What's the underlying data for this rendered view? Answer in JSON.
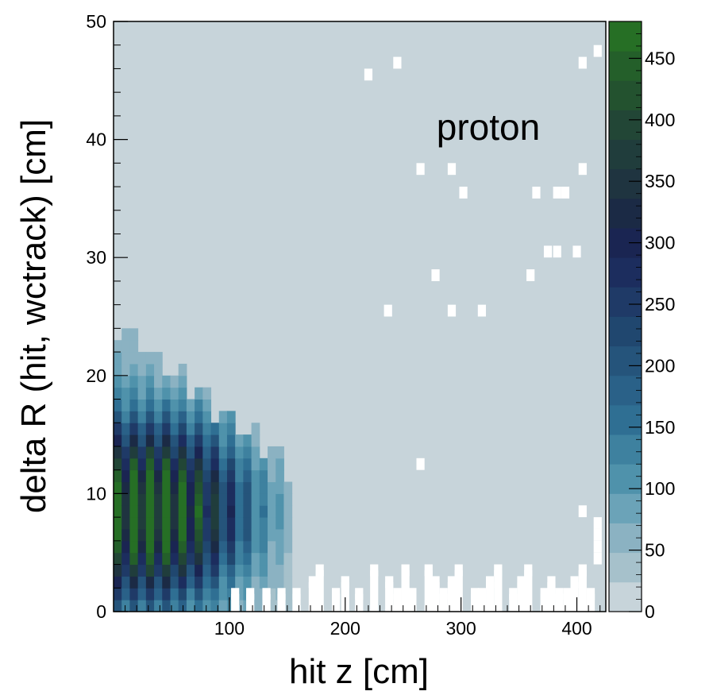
{
  "chart_data": {
    "type": "heatmap",
    "title": "",
    "annotation": "proton",
    "xlabel": "hit z [cm]",
    "ylabel": "delta R (hit, wctrack) [cm]",
    "xlim": [
      0,
      425
    ],
    "ylim": [
      0,
      50
    ],
    "x_ticks": [
      100,
      200,
      300,
      400
    ],
    "y_ticks": [
      0,
      10,
      20,
      30,
      40,
      50
    ],
    "bin_width_x": 7,
    "bin_width_y": 1,
    "colorbar": {
      "range": [
        0,
        480
      ],
      "ticks": [
        0,
        50,
        100,
        150,
        200,
        250,
        300,
        350,
        400,
        450
      ],
      "colors": [
        "#c7d4da",
        "#a6c1cb",
        "#8bb2c2",
        "#6ba3b8",
        "#4f92ab",
        "#3e819f",
        "#2f6f93",
        "#2a6188",
        "#25547b",
        "#20476f",
        "#1f3a67",
        "#1c2d5e",
        "#1a2552",
        "#1b2a45",
        "#1f3440",
        "#203d3c",
        "#224636",
        "#23522f",
        "#245f2a",
        "#266f25"
      ]
    },
    "background_level": 5,
    "cluster": {
      "z_center": 35,
      "r_center": 8.5,
      "z_extent": 150,
      "r_extent_max": 24,
      "peak_value": 480
    },
    "empty_bins": [
      [
        220,
        45.5
      ],
      [
        245,
        46.5
      ],
      [
        405,
        46.5
      ],
      [
        418,
        47.5
      ],
      [
        265,
        37.5
      ],
      [
        292,
        37.5
      ],
      [
        302,
        35.5
      ],
      [
        365,
        35.5
      ],
      [
        383,
        35.5
      ],
      [
        390,
        35.5
      ],
      [
        405,
        37.5
      ],
      [
        375,
        30.5
      ],
      [
        383,
        30.5
      ],
      [
        400,
        30.5
      ],
      [
        278,
        28.5
      ],
      [
        360,
        28.5
      ],
      [
        237,
        25.5
      ],
      [
        292,
        25.5
      ],
      [
        318,
        25.5
      ],
      [
        265,
        12.5
      ],
      [
        405,
        8.5
      ],
      [
        418,
        7.5
      ],
      [
        418,
        6.5
      ],
      [
        418,
        5.5
      ],
      [
        418,
        4.5
      ]
    ],
    "low_edge_gaps": [
      [
        105,
        1.5
      ],
      [
        118,
        1.5
      ],
      [
        132,
        1.5
      ],
      [
        145,
        1.5
      ],
      [
        158,
        1.5
      ],
      [
        172,
        2.5
      ],
      [
        178,
        3.5
      ],
      [
        192,
        1.5
      ],
      [
        200,
        2.5
      ],
      [
        212,
        1.5
      ],
      [
        225,
        3.5
      ],
      [
        238,
        2.5
      ],
      [
        245,
        1.5
      ],
      [
        252,
        3.5
      ],
      [
        258,
        1.5
      ],
      [
        272,
        3.5
      ],
      [
        278,
        2.5
      ],
      [
        285,
        1.5
      ],
      [
        292,
        2.5
      ],
      [
        298,
        3.5
      ],
      [
        312,
        1.5
      ],
      [
        318,
        1.5
      ],
      [
        325,
        2.5
      ],
      [
        332,
        3.5
      ],
      [
        345,
        1.5
      ],
      [
        352,
        2.5
      ],
      [
        358,
        3.5
      ],
      [
        372,
        1.5
      ],
      [
        378,
        2.5
      ],
      [
        385,
        1.5
      ],
      [
        392,
        1.5
      ],
      [
        398,
        2.5
      ],
      [
        405,
        3.5
      ],
      [
        412,
        1.5
      ]
    ]
  }
}
